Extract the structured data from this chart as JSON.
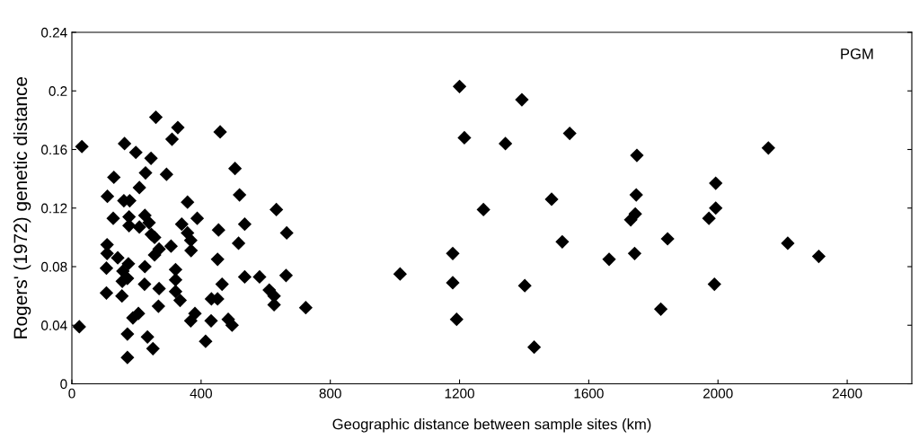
{
  "chart_data": {
    "type": "scatter",
    "xlabel": "Geographic distance between sample sites (km)",
    "ylabel": "Rogers' (1972) genetic distance",
    "annotations": [
      "PGM"
    ],
    "marker": "diamond",
    "grid": false,
    "xlim": [
      0,
      2600
    ],
    "ylim": [
      0,
      0.24
    ],
    "xticks": [
      0,
      400,
      800,
      1200,
      1600,
      2000,
      2400
    ],
    "yticks": [
      0,
      0.04,
      0.08,
      0.12,
      0.16,
      0.2,
      0.24
    ],
    "series": [
      {
        "color": "#000000",
        "x": [
          31,
          23,
          260,
          328,
          310,
          163,
          198,
          245,
          228,
          293,
          130,
          209,
          110,
          161,
          179,
          358,
          128,
          177,
          177,
          226,
          209,
          239,
          388,
          340,
          246,
          256,
          358,
          368,
          369,
          307,
          270,
          256,
          109,
          109,
          142,
          107,
          175,
          158,
          172,
          156,
          226,
          321,
          321,
          107,
          155,
          225,
          270,
          321,
          335,
          268,
          206,
          189,
          381,
          368,
          172,
          234,
          251,
          172,
          414,
          459,
          505,
          519,
          633,
          535,
          454,
          665,
          516,
          451,
          535,
          581,
          663,
          465,
          611,
          626,
          432,
          451,
          626,
          724,
          431,
          484,
          496,
          1200,
          1393,
          1215,
          1342,
          1541,
          1749,
          1747,
          1744,
          1730,
          1274,
          1485,
          1518,
          1179,
          1742,
          1663,
          1016,
          1179,
          1402,
          1191,
          1431,
          2156,
          1993,
          1993,
          1972,
          1844,
          2216,
          2312,
          1989,
          1823
        ],
        "values": [
          0.162,
          0.039,
          0.182,
          0.175,
          0.167,
          0.164,
          0.158,
          0.154,
          0.144,
          0.143,
          0.141,
          0.134,
          0.128,
          0.125,
          0.125,
          0.124,
          0.113,
          0.114,
          0.108,
          0.115,
          0.107,
          0.11,
          0.113,
          0.109,
          0.102,
          0.1,
          0.103,
          0.098,
          0.091,
          0.094,
          0.092,
          0.088,
          0.095,
          0.089,
          0.086,
          0.079,
          0.082,
          0.077,
          0.072,
          0.07,
          0.08,
          0.078,
          0.071,
          0.062,
          0.06,
          0.068,
          0.065,
          0.063,
          0.057,
          0.053,
          0.048,
          0.045,
          0.048,
          0.043,
          0.034,
          0.032,
          0.024,
          0.018,
          0.029,
          0.172,
          0.147,
          0.129,
          0.119,
          0.109,
          0.105,
          0.103,
          0.096,
          0.085,
          0.073,
          0.073,
          0.074,
          0.068,
          0.064,
          0.06,
          0.058,
          0.058,
          0.054,
          0.052,
          0.043,
          0.044,
          0.04,
          0.203,
          0.194,
          0.168,
          0.164,
          0.171,
          0.156,
          0.129,
          0.116,
          0.112,
          0.119,
          0.126,
          0.097,
          0.089,
          0.089,
          0.085,
          0.075,
          0.069,
          0.067,
          0.044,
          0.025,
          0.161,
          0.137,
          0.12,
          0.113,
          0.099,
          0.096,
          0.087,
          0.068,
          0.051
        ]
      }
    ]
  }
}
